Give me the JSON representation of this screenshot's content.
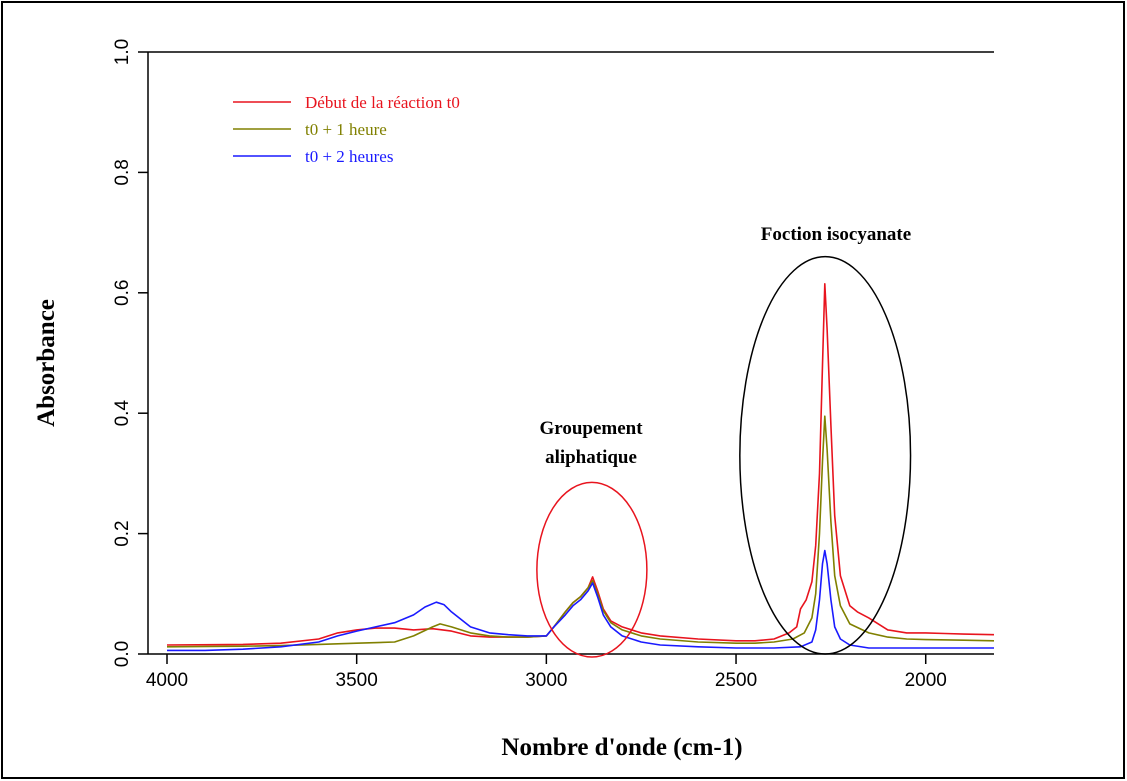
{
  "chart_data": {
    "type": "line",
    "title": "",
    "xlabel": "Nombre d'onde (cm-1)",
    "ylabel": "Absorbance",
    "xlim": [
      4000,
      1820
    ],
    "ylim": [
      0,
      1.0
    ],
    "x_reversed": true,
    "grid": false,
    "legend_position": "top-left",
    "x_ticks": [
      4000,
      3500,
      3000,
      2500,
      2000
    ],
    "x_tick_labels": [
      "4000",
      "3500",
      "3000",
      "2500",
      "2000"
    ],
    "y_ticks": [
      0.0,
      0.2,
      0.4,
      0.6,
      0.8,
      1.0
    ],
    "y_tick_labels": [
      "0.0",
      "0.2",
      "0.4",
      "0.6",
      "0.8",
      "1.0"
    ],
    "series": [
      {
        "name": "Début de la réaction t0",
        "color": "#e8141e",
        "points": [
          [
            4000,
            0.015
          ],
          [
            3800,
            0.016
          ],
          [
            3700,
            0.018
          ],
          [
            3600,
            0.025
          ],
          [
            3550,
            0.035
          ],
          [
            3500,
            0.04
          ],
          [
            3450,
            0.043
          ],
          [
            3400,
            0.043
          ],
          [
            3350,
            0.04
          ],
          [
            3300,
            0.042
          ],
          [
            3250,
            0.038
          ],
          [
            3200,
            0.03
          ],
          [
            3150,
            0.028
          ],
          [
            3100,
            0.028
          ],
          [
            3050,
            0.028
          ],
          [
            3000,
            0.03
          ],
          [
            2980,
            0.045
          ],
          [
            2950,
            0.07
          ],
          [
            2930,
            0.085
          ],
          [
            2910,
            0.095
          ],
          [
            2890,
            0.11
          ],
          [
            2878,
            0.128
          ],
          [
            2865,
            0.105
          ],
          [
            2850,
            0.075
          ],
          [
            2830,
            0.055
          ],
          [
            2800,
            0.045
          ],
          [
            2750,
            0.035
          ],
          [
            2700,
            0.03
          ],
          [
            2600,
            0.025
          ],
          [
            2500,
            0.022
          ],
          [
            2450,
            0.022
          ],
          [
            2400,
            0.025
          ],
          [
            2360,
            0.035
          ],
          [
            2340,
            0.045
          ],
          [
            2330,
            0.075
          ],
          [
            2315,
            0.09
          ],
          [
            2300,
            0.12
          ],
          [
            2290,
            0.18
          ],
          [
            2280,
            0.3
          ],
          [
            2272,
            0.48
          ],
          [
            2266,
            0.615
          ],
          [
            2260,
            0.54
          ],
          [
            2250,
            0.38
          ],
          [
            2240,
            0.23
          ],
          [
            2225,
            0.13
          ],
          [
            2200,
            0.08
          ],
          [
            2180,
            0.07
          ],
          [
            2150,
            0.06
          ],
          [
            2100,
            0.04
          ],
          [
            2050,
            0.035
          ],
          [
            2000,
            0.035
          ],
          [
            1950,
            0.034
          ],
          [
            1900,
            0.033
          ],
          [
            1820,
            0.032
          ]
        ]
      },
      {
        "name": "t0 + 1 heure",
        "color": "#808000",
        "points": [
          [
            4000,
            0.012
          ],
          [
            3800,
            0.013
          ],
          [
            3700,
            0.014
          ],
          [
            3600,
            0.016
          ],
          [
            3500,
            0.018
          ],
          [
            3400,
            0.02
          ],
          [
            3350,
            0.03
          ],
          [
            3300,
            0.045
          ],
          [
            3280,
            0.05
          ],
          [
            3250,
            0.045
          ],
          [
            3200,
            0.035
          ],
          [
            3150,
            0.03
          ],
          [
            3100,
            0.028
          ],
          [
            3050,
            0.028
          ],
          [
            3000,
            0.03
          ],
          [
            2980,
            0.045
          ],
          [
            2950,
            0.07
          ],
          [
            2930,
            0.085
          ],
          [
            2910,
            0.095
          ],
          [
            2890,
            0.11
          ],
          [
            2878,
            0.122
          ],
          [
            2865,
            0.1
          ],
          [
            2850,
            0.072
          ],
          [
            2830,
            0.052
          ],
          [
            2800,
            0.04
          ],
          [
            2750,
            0.03
          ],
          [
            2700,
            0.025
          ],
          [
            2600,
            0.02
          ],
          [
            2500,
            0.018
          ],
          [
            2450,
            0.018
          ],
          [
            2400,
            0.02
          ],
          [
            2350,
            0.025
          ],
          [
            2320,
            0.035
          ],
          [
            2300,
            0.06
          ],
          [
            2290,
            0.1
          ],
          [
            2280,
            0.2
          ],
          [
            2272,
            0.32
          ],
          [
            2266,
            0.395
          ],
          [
            2260,
            0.34
          ],
          [
            2250,
            0.22
          ],
          [
            2240,
            0.13
          ],
          [
            2225,
            0.08
          ],
          [
            2200,
            0.05
          ],
          [
            2150,
            0.035
          ],
          [
            2100,
            0.028
          ],
          [
            2050,
            0.025
          ],
          [
            2000,
            0.024
          ],
          [
            1900,
            0.023
          ],
          [
            1820,
            0.022
          ]
        ]
      },
      {
        "name": "t0 + 2 heures",
        "color": "#1a1aff",
        "points": [
          [
            4000,
            0.006
          ],
          [
            3900,
            0.006
          ],
          [
            3800,
            0.008
          ],
          [
            3700,
            0.012
          ],
          [
            3600,
            0.02
          ],
          [
            3550,
            0.03
          ],
          [
            3500,
            0.038
          ],
          [
            3450,
            0.045
          ],
          [
            3400,
            0.052
          ],
          [
            3350,
            0.065
          ],
          [
            3320,
            0.078
          ],
          [
            3290,
            0.086
          ],
          [
            3270,
            0.082
          ],
          [
            3250,
            0.07
          ],
          [
            3220,
            0.055
          ],
          [
            3200,
            0.045
          ],
          [
            3150,
            0.035
          ],
          [
            3100,
            0.032
          ],
          [
            3050,
            0.03
          ],
          [
            3000,
            0.03
          ],
          [
            2980,
            0.045
          ],
          [
            2950,
            0.065
          ],
          [
            2930,
            0.08
          ],
          [
            2910,
            0.09
          ],
          [
            2890,
            0.105
          ],
          [
            2878,
            0.118
          ],
          [
            2865,
            0.095
          ],
          [
            2850,
            0.065
          ],
          [
            2830,
            0.045
          ],
          [
            2800,
            0.03
          ],
          [
            2750,
            0.02
          ],
          [
            2700,
            0.015
          ],
          [
            2600,
            0.012
          ],
          [
            2500,
            0.01
          ],
          [
            2400,
            0.01
          ],
          [
            2330,
            0.012
          ],
          [
            2300,
            0.02
          ],
          [
            2290,
            0.04
          ],
          [
            2280,
            0.09
          ],
          [
            2272,
            0.15
          ],
          [
            2266,
            0.172
          ],
          [
            2260,
            0.15
          ],
          [
            2250,
            0.09
          ],
          [
            2240,
            0.045
          ],
          [
            2225,
            0.025
          ],
          [
            2200,
            0.015
          ],
          [
            2150,
            0.01
          ],
          [
            2100,
            0.01
          ],
          [
            2000,
            0.01
          ],
          [
            1900,
            0.01
          ],
          [
            1820,
            0.01
          ]
        ]
      }
    ],
    "annotations": [
      {
        "id": "aliphatic",
        "lines": [
          "Groupement",
          "aliphatique"
        ],
        "ellipse_color": "#e8141e",
        "ellipse_center": [
          2880,
          0.14
        ],
        "ellipse_rx_data": 145,
        "ellipse_ry_data": 0.145
      },
      {
        "id": "isocyanate",
        "lines": [
          "Foction isocyanate"
        ],
        "ellipse_color": "#000000",
        "ellipse_center": [
          2265,
          0.33
        ],
        "ellipse_rx_data": 225,
        "ellipse_ry_data": 0.33
      }
    ]
  }
}
